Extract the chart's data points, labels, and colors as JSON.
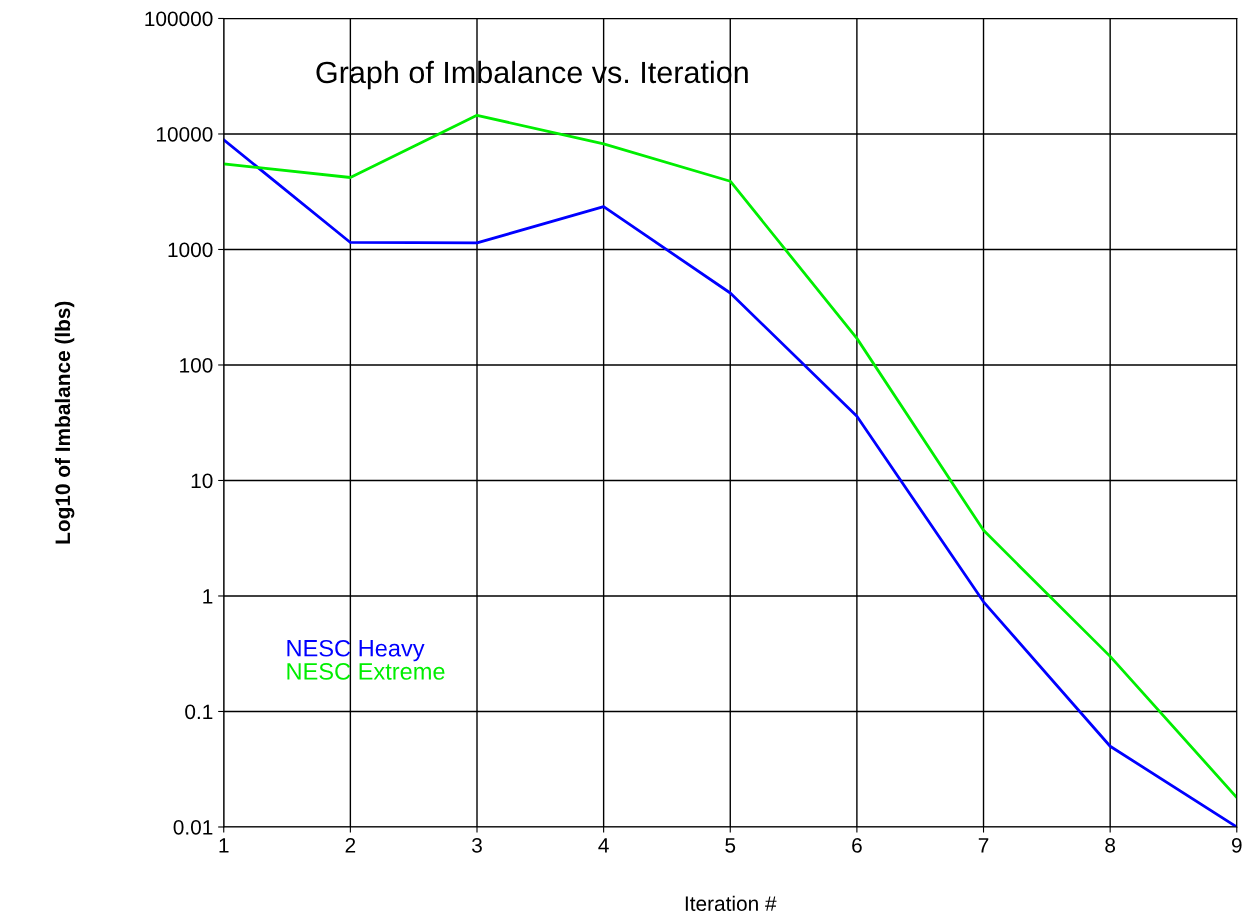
{
  "chart_data": {
    "type": "line",
    "title": "Graph of Imbalance vs. Iteration",
    "xlabel": "Iteration #",
    "ylabel": "Log10 of Imbalance (lbs)",
    "x": [
      1,
      2,
      3,
      4,
      5,
      6,
      7,
      8,
      9
    ],
    "series": [
      {
        "name": "NESC Heavy",
        "color": "#0000ff",
        "values": [
          8900,
          1150,
          1140,
          2350,
          420,
          36,
          0.89,
          0.05,
          0.01
        ]
      },
      {
        "name": "NESC Extreme",
        "color": "#00ee00",
        "values": [
          5500,
          4200,
          14500,
          8200,
          3900,
          170,
          3.7,
          0.3,
          0.018
        ]
      }
    ],
    "log": "y",
    "xlim": [
      1,
      9
    ],
    "xticks": [
      1,
      2,
      3,
      4,
      5,
      6,
      7,
      8,
      9
    ],
    "ylim": [
      0.01,
      100000
    ],
    "yticks": [
      0.01,
      0.1,
      1,
      10,
      100,
      1000,
      10000,
      100000
    ],
    "grid": true,
    "legend": "bottom left",
    "marker": "none",
    "line_style": "solid"
  }
}
